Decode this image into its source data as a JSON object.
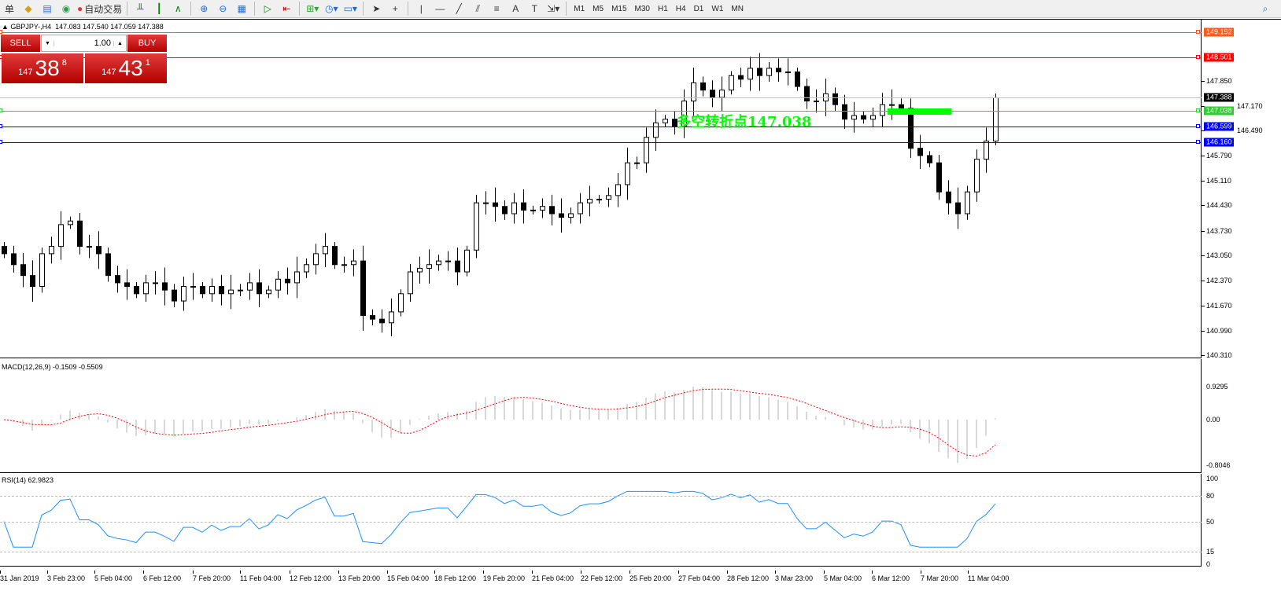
{
  "toolbar": {
    "first_label": "单",
    "autotrade_label": "自动交易",
    "timeframes": [
      "M1",
      "M5",
      "M15",
      "M30",
      "H1",
      "H4",
      "D1",
      "W1",
      "MN"
    ]
  },
  "chart_header": {
    "symbol": "GBPJPY-,H4",
    "ohlc": "147.083 147.540 147.059 147.388"
  },
  "trade_panel": {
    "sell_label": "SELL",
    "buy_label": "BUY",
    "lot": "1.00",
    "sell_big": "147",
    "sell_main": "38",
    "sell_sup": "8",
    "buy_big": "147",
    "buy_main": "43",
    "buy_sup": "1"
  },
  "annotation": {
    "text": "多空转折点147.038",
    "color": "#00ff00"
  },
  "price_axis": {
    "labels": [
      "147.850",
      "147.170",
      "146.490",
      "145.790",
      "145.110",
      "144.430",
      "143.730",
      "143.050",
      "142.370",
      "141.670",
      "140.990",
      "140.310"
    ]
  },
  "levels": [
    {
      "price": "149.192",
      "color": "#ff5a1e"
    },
    {
      "price": "148.501",
      "color": "#ff0000"
    },
    {
      "price": "147.388",
      "color": "#000000",
      "line": "#c0c0c0"
    },
    {
      "price": "147.038",
      "color": "#33cc33"
    },
    {
      "price": "146.599",
      "color": "#0000ff"
    },
    {
      "price": "146.160",
      "color": "#0000ff"
    }
  ],
  "macd": {
    "title": "MACD(12,26,9) -0.1509 -0.5509",
    "labels": [
      "0.9295",
      "0.00",
      "-0.8046"
    ],
    "signal_color": "#ff0000"
  },
  "rsi": {
    "title": "RSI(14) 62.9823",
    "labels": [
      "100",
      "80",
      "50",
      "15",
      "0"
    ],
    "color": "#1e90ff"
  },
  "time_axis": [
    "31 Jan 2019",
    "3 Feb 23:00",
    "5 Feb 04:00",
    "6 Feb 12:00",
    "7 Feb 20:00",
    "11 Feb 04:00",
    "12 Feb 12:00",
    "13 Feb 20:00",
    "15 Feb 04:00",
    "18 Feb 12:00",
    "19 Feb 20:00",
    "21 Feb 04:00",
    "22 Feb 12:00",
    "25 Feb 20:00",
    "27 Feb 04:00",
    "28 Feb 12:00",
    "3 Mar 23:00",
    "5 Mar 04:00",
    "6 Mar 12:00",
    "7 Mar 20:00",
    "11 Mar 04:00"
  ],
  "chart_data": {
    "type": "candlestick",
    "symbol": "GBPJPY-",
    "timeframe": "H4",
    "ylim": [
      140.31,
      149.192
    ],
    "closes": [
      143.1,
      142.8,
      142.5,
      142.2,
      143.1,
      143.3,
      143.9,
      144.0,
      143.3,
      143.3,
      143.1,
      142.5,
      142.3,
      142.2,
      142.0,
      142.3,
      142.3,
      142.1,
      141.8,
      142.2,
      142.2,
      142.0,
      142.2,
      142.0,
      142.1,
      142.1,
      142.3,
      142.0,
      142.1,
      142.4,
      142.3,
      142.6,
      142.8,
      143.1,
      143.3,
      142.8,
      142.8,
      142.9,
      141.4,
      141.3,
      141.2,
      141.5,
      142.0,
      142.6,
      142.7,
      142.8,
      142.9,
      142.9,
      142.6,
      143.2,
      144.5,
      144.5,
      144.4,
      144.2,
      144.5,
      144.3,
      144.3,
      144.4,
      144.2,
      144.1,
      144.2,
      144.5,
      144.6,
      144.6,
      144.7,
      145.0,
      145.6,
      145.6,
      146.3,
      146.7,
      146.8,
      146.6,
      147.3,
      147.8,
      147.6,
      147.4,
      147.6,
      148.0,
      147.9,
      148.2,
      148.0,
      148.2,
      148.1,
      148.1,
      147.7,
      147.3,
      147.3,
      147.5,
      147.2,
      146.8,
      146.9,
      146.8,
      146.9,
      147.2,
      147.2,
      147.1,
      146.0,
      145.8,
      145.6,
      144.8,
      144.5,
      144.2,
      144.8,
      145.7,
      146.2,
      147.388
    ]
  }
}
